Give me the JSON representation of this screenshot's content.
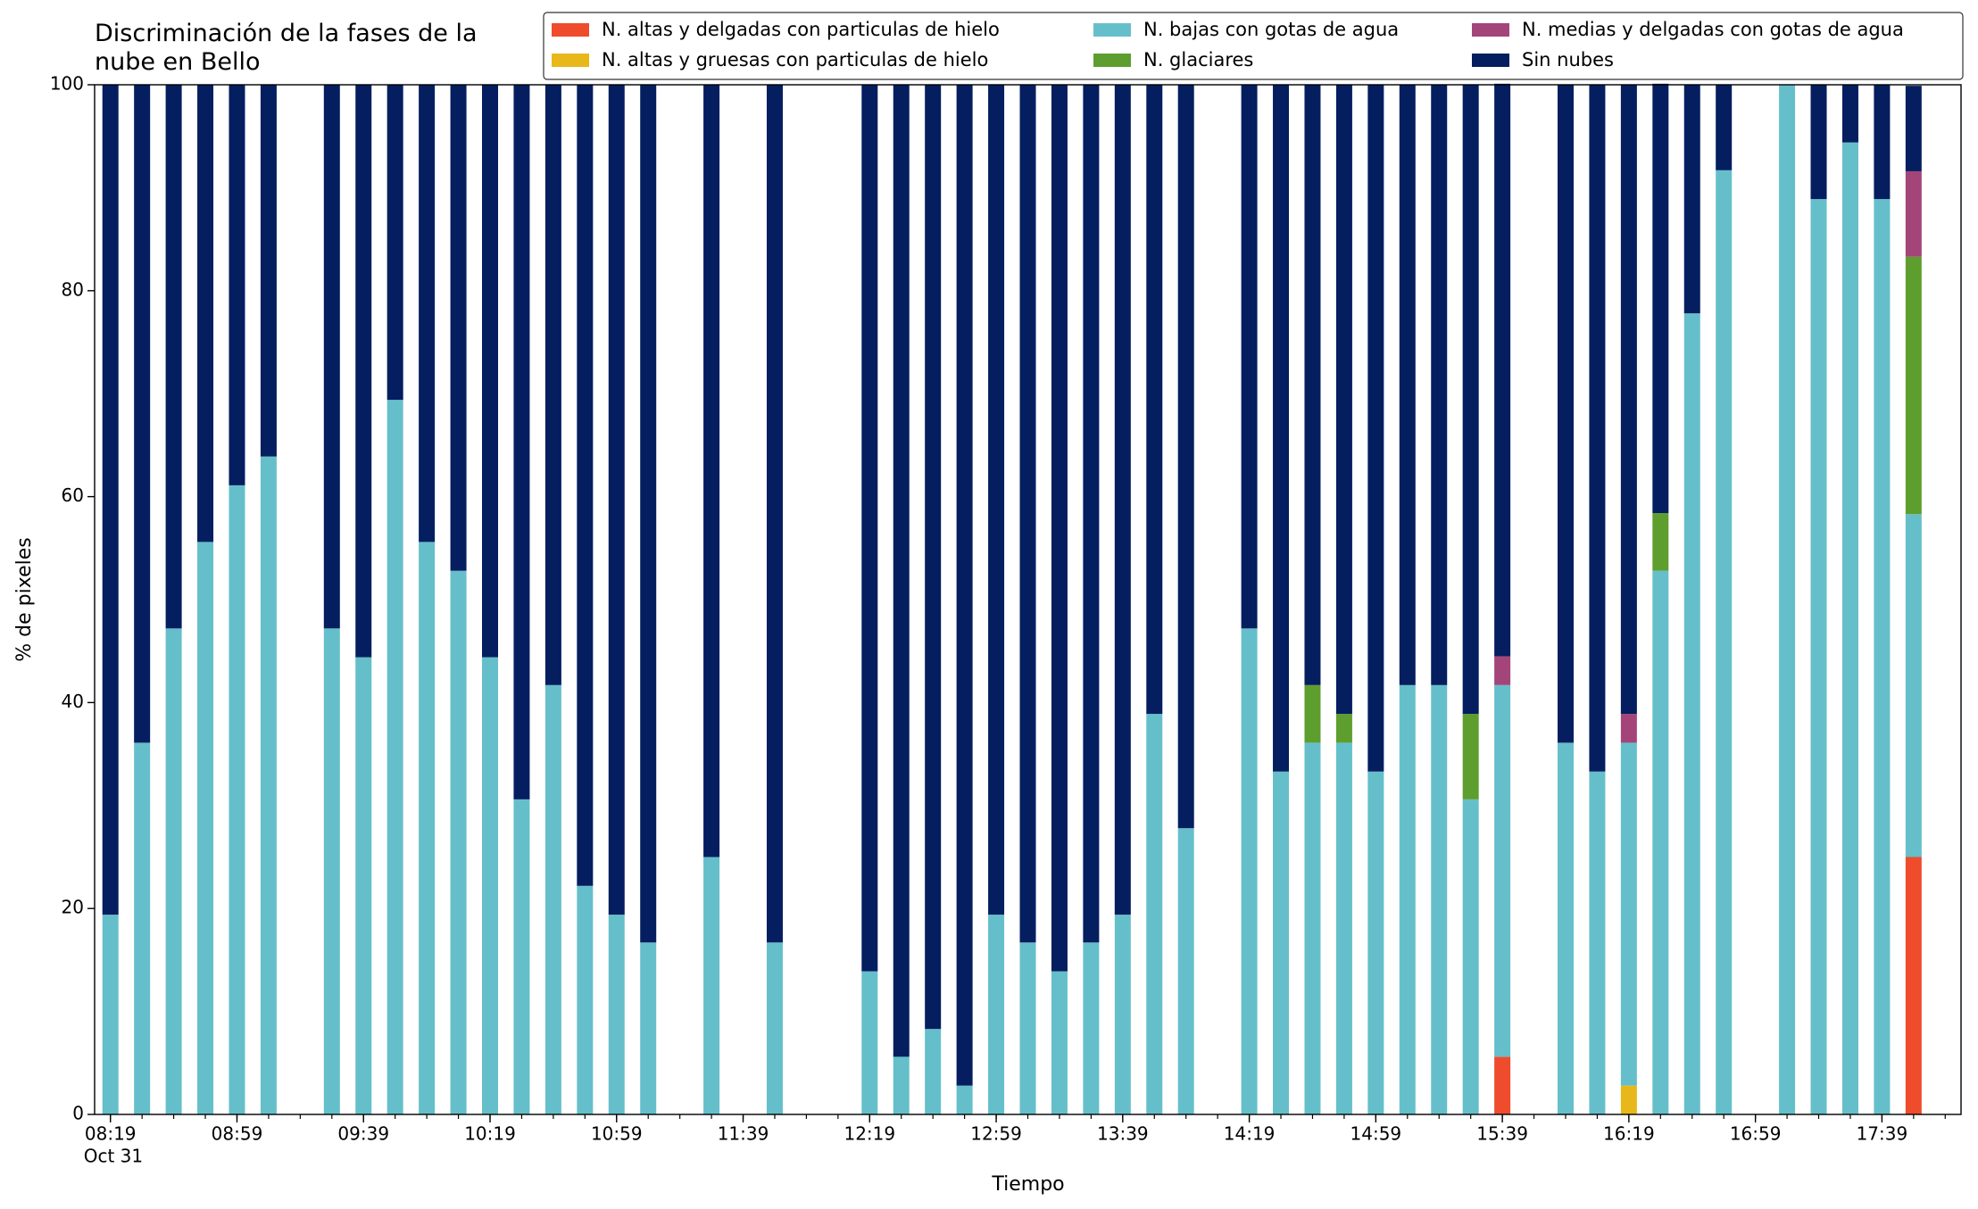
{
  "chart_data": {
    "type": "stacked_bar",
    "title": "Discriminación de la fases de la\nnube en Bello",
    "xlabel": "Tiempo",
    "ylabel": "% de pixeles",
    "x": [
      "08:19",
      "08:29",
      "08:39",
      "08:49",
      "08:59",
      "09:09",
      "09:29",
      "09:39",
      "09:49",
      "09:59",
      "10:09",
      "10:19",
      "10:29",
      "10:39",
      "10:49",
      "10:59",
      "11:09",
      "11:29",
      "11:49",
      "12:19",
      "12:29",
      "12:39",
      "12:49",
      "12:59",
      "13:09",
      "13:19",
      "13:29",
      "13:39",
      "13:49",
      "13:59",
      "14:19",
      "14:29",
      "14:39",
      "14:49",
      "14:59",
      "15:09",
      "15:19",
      "15:29",
      "15:39",
      "15:59",
      "16:09",
      "16:19",
      "16:29",
      "16:39",
      "16:49",
      "17:09",
      "17:19",
      "17:29",
      "17:39",
      "17:49"
    ],
    "xlim": [
      "08:14",
      "18:04"
    ],
    "xticks": [
      "08:19",
      "08:59",
      "09:39",
      "10:19",
      "10:59",
      "11:39",
      "12:19",
      "12:59",
      "13:39",
      "14:19",
      "14:59",
      "15:39",
      "16:19",
      "16:59",
      "17:39"
    ],
    "xtick_sublabel": "Oct 31",
    "xminorticks": [
      "08:19",
      "08:29",
      "08:39",
      "08:49",
      "08:59",
      "09:09",
      "09:19",
      "09:29",
      "09:39",
      "09:49",
      "09:59",
      "10:09",
      "10:19",
      "10:29",
      "10:39",
      "10:49",
      "10:59",
      "11:09",
      "11:19",
      "11:29",
      "11:39",
      "11:49",
      "11:59",
      "12:09",
      "12:19",
      "12:29",
      "12:39",
      "12:49",
      "12:59",
      "13:09",
      "13:19",
      "13:29",
      "13:39",
      "13:49",
      "13:59",
      "14:09",
      "14:19",
      "14:29",
      "14:39",
      "14:49",
      "14:59",
      "15:09",
      "15:19",
      "15:29",
      "15:39",
      "15:49",
      "15:59",
      "16:09",
      "16:19",
      "16:29",
      "16:39",
      "16:49",
      "16:59",
      "17:09",
      "17:19",
      "17:29",
      "17:39",
      "17:49",
      "17:59"
    ],
    "ylim": [
      0,
      100
    ],
    "yticks": [
      0,
      20,
      40,
      60,
      80,
      100
    ],
    "grid": false,
    "legend": "upper right",
    "series": [
      {
        "name": "N. altas y delgadas con particulas de hielo",
        "color": "#ee4c2c",
        "values": [
          0,
          0,
          0,
          0,
          0,
          0,
          0,
          0,
          0,
          0,
          0,
          0,
          0,
          0,
          0,
          0,
          0,
          0,
          0,
          0,
          0,
          0,
          0,
          0,
          0,
          0,
          0,
          0,
          0,
          0,
          0,
          0,
          0,
          0,
          0,
          0,
          0,
          0,
          5.6,
          0,
          0,
          0,
          0,
          0,
          0,
          0,
          0,
          0,
          0,
          25
        ]
      },
      {
        "name": "N. altas y gruesas con particulas de hielo",
        "color": "#e8b81a",
        "values": [
          0,
          0,
          0,
          0,
          0,
          0,
          0,
          0,
          0,
          0,
          0,
          0,
          0,
          0,
          0,
          0,
          0,
          0,
          0,
          0,
          0,
          0,
          0,
          0,
          0,
          0,
          0,
          0,
          0,
          0,
          0,
          0,
          0,
          0,
          0,
          0,
          0,
          0,
          0,
          0,
          0,
          2.8,
          0,
          0,
          0,
          0,
          0,
          0,
          0,
          0
        ]
      },
      {
        "name": "N. bajas con gotas de agua",
        "color": "#65bfca",
        "values": [
          19.4,
          36.1,
          47.2,
          55.6,
          61.1,
          63.9,
          47.2,
          44.4,
          69.4,
          55.6,
          52.8,
          44.4,
          30.6,
          41.7,
          22.2,
          19.4,
          16.7,
          25.0,
          16.7,
          13.9,
          5.6,
          8.3,
          2.8,
          19.4,
          16.7,
          13.9,
          16.7,
          19.4,
          38.9,
          27.8,
          47.2,
          33.3,
          36.1,
          36.1,
          33.3,
          41.7,
          41.7,
          30.6,
          36.1,
          36.1,
          33.3,
          33.3,
          52.8,
          77.8,
          91.7,
          100,
          88.9,
          94.4,
          88.9,
          33.3
        ]
      },
      {
        "name": "N. glaciares",
        "color": "#5e9e2e",
        "values": [
          0,
          0,
          0,
          0,
          0,
          0,
          0,
          0,
          0,
          0,
          0,
          0,
          0,
          0,
          0,
          0,
          0,
          0,
          0,
          0,
          0,
          0,
          0,
          0,
          0,
          0,
          0,
          0,
          0,
          0,
          0,
          0,
          5.6,
          2.8,
          0,
          0,
          0,
          8.3,
          0,
          0,
          0,
          0,
          5.6,
          0,
          0,
          0,
          0,
          0,
          0,
          25
        ]
      },
      {
        "name": "N. medias y delgadas con gotas de agua",
        "color": "#a4457a",
        "values": [
          0,
          0,
          0,
          0,
          0,
          0,
          0,
          0,
          0,
          0,
          0,
          0,
          0,
          0,
          0,
          0,
          0,
          0,
          0,
          0,
          0,
          0,
          0,
          0,
          0,
          0,
          0,
          0,
          0,
          0,
          0,
          0,
          0,
          0,
          0,
          0,
          0,
          0,
          2.8,
          0,
          0,
          2.8,
          0,
          0,
          0,
          0,
          0,
          0,
          0,
          8.3
        ]
      },
      {
        "name": "Sin nubes",
        "color": "#041e5f",
        "values": [
          80.6,
          63.9,
          52.8,
          44.4,
          38.9,
          36.1,
          52.8,
          55.6,
          30.6,
          44.4,
          47.2,
          55.6,
          69.4,
          58.3,
          77.8,
          80.6,
          83.3,
          75.0,
          83.3,
          86.1,
          94.4,
          91.7,
          97.2,
          80.6,
          83.3,
          86.1,
          83.3,
          80.6,
          61.1,
          72.2,
          52.8,
          66.7,
          58.3,
          61.1,
          66.7,
          58.3,
          58.3,
          61.1,
          55.6,
          63.9,
          66.7,
          61.1,
          41.7,
          22.2,
          8.3,
          0,
          11.1,
          5.6,
          11.1,
          8.3
        ]
      }
    ]
  }
}
